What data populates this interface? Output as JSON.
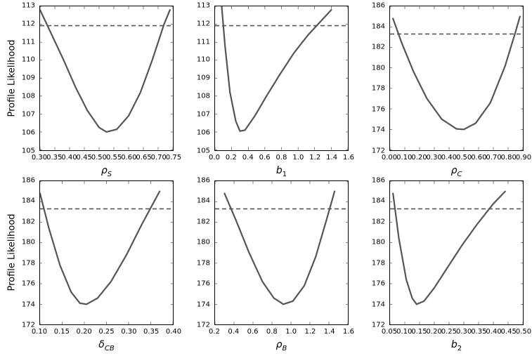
{
  "global": {
    "ylabel": "Profile Likelihood",
    "line_color": "#555555",
    "dash_color": "#555555",
    "line_width": 2.2,
    "dash_width": 1.6,
    "dash_pattern": "6,4",
    "background_color": "#ffffff",
    "border_color": "#000000",
    "font_family": "DejaVu Sans",
    "tick_fontsize": 10,
    "label_fontsize": 14
  },
  "panels": [
    {
      "id": "rhoS",
      "xlabel_html": "ρ<sub><i>S</i></sub>",
      "show_ylabel": true,
      "xlim": [
        0.3,
        0.75
      ],
      "ylim": [
        105,
        113
      ],
      "xticks": [
        0.3,
        0.35,
        0.4,
        0.45,
        0.5,
        0.55,
        0.6,
        0.65,
        0.7,
        0.75
      ],
      "yticks": [
        105,
        106,
        107,
        108,
        109,
        110,
        111,
        112,
        113
      ],
      "dash_y": 111.92,
      "curve": [
        [
          0.3,
          112.8
        ],
        [
          0.34,
          111.4
        ],
        [
          0.38,
          110.0
        ],
        [
          0.42,
          108.5
        ],
        [
          0.46,
          107.2
        ],
        [
          0.5,
          106.25
        ],
        [
          0.525,
          106.0
        ],
        [
          0.56,
          106.15
        ],
        [
          0.6,
          106.9
        ],
        [
          0.64,
          108.2
        ],
        [
          0.68,
          110.0
        ],
        [
          0.72,
          112.0
        ],
        [
          0.74,
          112.8
        ]
      ]
    },
    {
      "id": "b1",
      "xlabel_html": "<i>b</i><sub>1</sub>",
      "show_ylabel": false,
      "xlim": [
        0.0,
        1.6
      ],
      "ylim": [
        105,
        113
      ],
      "xticks": [
        0.0,
        0.2,
        0.4,
        0.6,
        0.8,
        1.0,
        1.2,
        1.4,
        1.6
      ],
      "yticks": [
        105,
        106,
        107,
        108,
        109,
        110,
        111,
        112,
        113
      ],
      "dash_y": 111.92,
      "curve": [
        [
          0.08,
          113.0
        ],
        [
          0.12,
          110.8
        ],
        [
          0.18,
          108.2
        ],
        [
          0.25,
          106.6
        ],
        [
          0.3,
          106.05
        ],
        [
          0.36,
          106.1
        ],
        [
          0.48,
          106.9
        ],
        [
          0.62,
          108.0
        ],
        [
          0.78,
          109.2
        ],
        [
          0.95,
          110.4
        ],
        [
          1.12,
          111.4
        ],
        [
          1.3,
          112.3
        ],
        [
          1.4,
          112.8
        ]
      ]
    },
    {
      "id": "rhoC",
      "xlabel_html": "ρ<sub><i>C</i></sub>",
      "show_ylabel": false,
      "xlim": [
        0.0,
        0.9
      ],
      "ylim": [
        172,
        186
      ],
      "xticks": [
        0.0,
        0.1,
        0.2,
        0.3,
        0.4,
        0.5,
        0.6,
        0.7,
        0.8,
        0.9
      ],
      "yticks": [
        172,
        174,
        176,
        178,
        180,
        182,
        184,
        186
      ],
      "dash_y": 183.3,
      "curve": [
        [
          0.02,
          184.8
        ],
        [
          0.08,
          182.4
        ],
        [
          0.16,
          179.6
        ],
        [
          0.25,
          177.0
        ],
        [
          0.35,
          175.0
        ],
        [
          0.45,
          174.05
        ],
        [
          0.5,
          174.0
        ],
        [
          0.58,
          174.6
        ],
        [
          0.68,
          176.6
        ],
        [
          0.78,
          180.2
        ],
        [
          0.85,
          183.5
        ],
        [
          0.88,
          185.0
        ]
      ]
    },
    {
      "id": "deltaCB",
      "xlabel_html": "δ<sub><i>CB</i></sub>",
      "show_ylabel": true,
      "xlim": [
        0.1,
        0.4
      ],
      "ylim": [
        172,
        186
      ],
      "xticks": [
        0.1,
        0.15,
        0.2,
        0.25,
        0.3,
        0.35,
        0.4
      ],
      "yticks": [
        172,
        174,
        176,
        178,
        180,
        182,
        184,
        186
      ],
      "dash_y": 183.3,
      "curve": [
        [
          0.1,
          184.8
        ],
        [
          0.12,
          181.4
        ],
        [
          0.145,
          177.8
        ],
        [
          0.17,
          175.2
        ],
        [
          0.19,
          174.1
        ],
        [
          0.205,
          174.0
        ],
        [
          0.23,
          174.6
        ],
        [
          0.26,
          176.2
        ],
        [
          0.295,
          178.8
        ],
        [
          0.33,
          181.8
        ],
        [
          0.36,
          184.2
        ],
        [
          0.37,
          185.0
        ]
      ]
    },
    {
      "id": "rhoB",
      "xlabel_html": "ρ<sub><i>B</i></sub>",
      "show_ylabel": false,
      "xlim": [
        0.2,
        1.6
      ],
      "ylim": [
        172,
        186
      ],
      "xticks": [
        0.2,
        0.4,
        0.6,
        0.8,
        1.0,
        1.2,
        1.4,
        1.6
      ],
      "yticks": [
        172,
        174,
        176,
        178,
        180,
        182,
        184,
        186
      ],
      "dash_y": 183.3,
      "curve": [
        [
          0.3,
          184.8
        ],
        [
          0.42,
          182.2
        ],
        [
          0.56,
          179.0
        ],
        [
          0.7,
          176.2
        ],
        [
          0.82,
          174.6
        ],
        [
          0.92,
          174.0
        ],
        [
          1.02,
          174.3
        ],
        [
          1.14,
          175.8
        ],
        [
          1.26,
          178.6
        ],
        [
          1.38,
          182.4
        ],
        [
          1.46,
          185.0
        ]
      ]
    },
    {
      "id": "b2",
      "xlabel_html": "<i>b</i><sub>2</sub>",
      "show_ylabel": false,
      "xlim": [
        0.05,
        0.5
      ],
      "ylim": [
        172,
        186
      ],
      "xticks": [
        0.05,
        0.1,
        0.15,
        0.2,
        0.25,
        0.3,
        0.35,
        0.4,
        0.45,
        0.5
      ],
      "yticks": [
        172,
        174,
        176,
        178,
        180,
        182,
        184,
        186
      ],
      "dash_y": 183.3,
      "curve": [
        [
          0.06,
          184.8
        ],
        [
          0.08,
          180.4
        ],
        [
          0.105,
          176.4
        ],
        [
          0.125,
          174.6
        ],
        [
          0.14,
          174.0
        ],
        [
          0.165,
          174.3
        ],
        [
          0.2,
          175.6
        ],
        [
          0.245,
          177.6
        ],
        [
          0.295,
          179.8
        ],
        [
          0.345,
          181.8
        ],
        [
          0.4,
          183.8
        ],
        [
          0.44,
          185.0
        ]
      ]
    }
  ]
}
